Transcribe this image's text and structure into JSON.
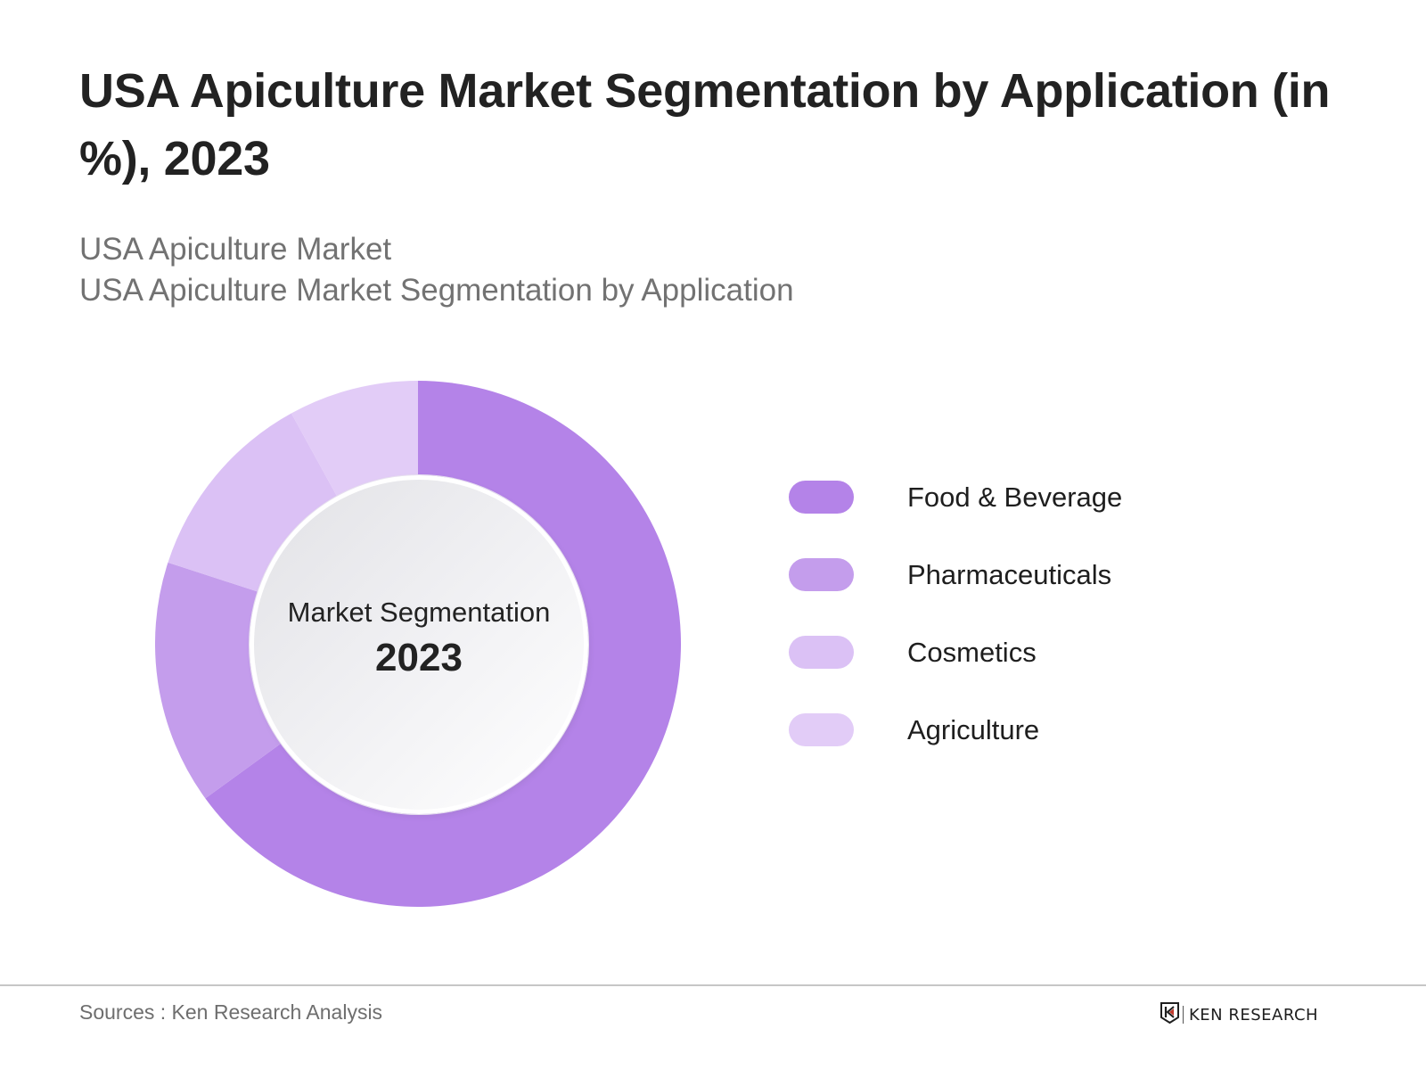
{
  "header": {
    "title": "USA Apiculture Market Segmentation by Application (in %), 2023",
    "subtitle_line1": "USA Apiculture Market",
    "subtitle_line2": "USA Apiculture Market Segmentation by Application"
  },
  "center": {
    "label": "Market Segmentation",
    "year": "2023"
  },
  "legend": [
    {
      "label": "Food & Beverage",
      "color": "#B483E8"
    },
    {
      "label": "Pharmaceuticals",
      "color": "#C49DEC"
    },
    {
      "label": "Cosmetics",
      "color": "#DBC1F5"
    },
    {
      "label": "Agriculture",
      "color": "#E2CCF7"
    }
  ],
  "footer": {
    "sources": "Sources : Ken Research Analysis",
    "logo_text": "KEN RESEARCH",
    "logo_icon": "ken-research-shield-icon"
  },
  "chart_data": {
    "type": "pie",
    "variant": "donut",
    "title": "USA Apiculture Market Segmentation by Application (in %), 2023",
    "subtitle": [
      "USA Apiculture Market",
      "USA Apiculture Market Segmentation by Application"
    ],
    "center_text": [
      "Market Segmentation",
      "2023"
    ],
    "categories": [
      "Food & Beverage",
      "Pharmaceuticals",
      "Cosmetics",
      "Agriculture"
    ],
    "values": [
      65,
      15,
      12,
      8
    ],
    "unit": "%",
    "colors": [
      "#B483E8",
      "#C49DEC",
      "#DBC1F5",
      "#E2CCF7"
    ],
    "start_angle": "12 o'clock",
    "direction": "clockwise",
    "data_labels": false,
    "legend_position": "right",
    "source": "Sources : Ken Research Analysis"
  }
}
